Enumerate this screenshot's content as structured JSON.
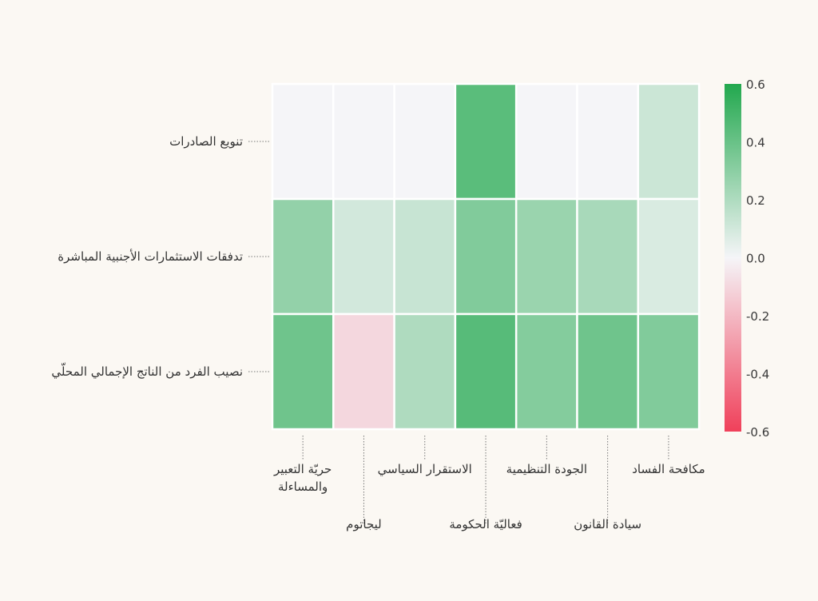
{
  "chart_data": {
    "type": "heatmap",
    "title": "",
    "xlabel": "",
    "ylabel": "",
    "rows": [
      "تنويع الصادرات",
      "تدفقات الاستثمارات الأجنبية المباشرة",
      "نصيب الفرد من الناتج الإجمالي المحلّي"
    ],
    "columns": [
      "حريّة التعبير والمساءلة",
      "ليجاتوم",
      "الاستقرار السياسي",
      "فعاليّة الحكومة",
      "الجودة التنظيمية",
      "سيادة القانون",
      "مكافحة الفساد"
    ],
    "column_label_lines": [
      [
        "حريّة التعبير",
        "والمساءلة"
      ],
      [
        "ليجاتوم"
      ],
      [
        "الاستقرار السياسي"
      ],
      [
        "فعاليّة الحكومة"
      ],
      [
        "الجودة التنظيمية"
      ],
      [
        "سيادة القانون"
      ],
      [
        "مكافحة الفساد"
      ]
    ],
    "values": [
      [
        0.0,
        0.0,
        0.0,
        0.44,
        0.0,
        0.0,
        0.12
      ],
      [
        0.28,
        0.1,
        0.13,
        0.33,
        0.26,
        0.22,
        0.08
      ],
      [
        0.38,
        -0.1,
        0.2,
        0.45,
        0.32,
        0.38,
        0.33
      ]
    ],
    "colorbar": {
      "min": -0.6,
      "max": 0.6,
      "ticks": [
        "0.6",
        "0.4",
        "0.2",
        "0.0",
        "-0.2",
        "-0.4",
        "-0.6"
      ],
      "colors": {
        "negative": "#f0405a",
        "zero": "#f5f5f8",
        "positive": "#22a84e"
      }
    }
  }
}
